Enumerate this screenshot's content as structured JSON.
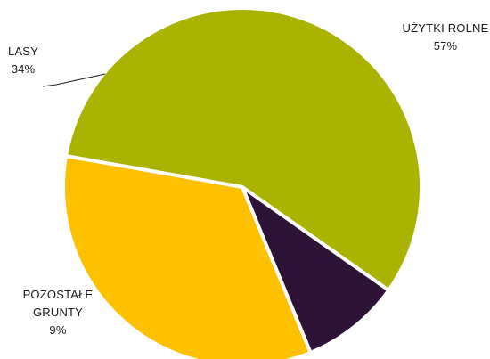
{
  "chart_data": {
    "type": "pie",
    "slices": [
      {
        "name": "UŻYTKI ROLNE",
        "label_lines": [
          "UŻYTKI ROLNE"
        ],
        "value": 57,
        "value_label": "57%",
        "color": "#a9b300"
      },
      {
        "name": "POZOSTAŁE GRUNTY",
        "label_lines": [
          "POZOSTAŁE",
          "GRUNTY"
        ],
        "value": 9,
        "value_label": "9%",
        "color": "#2e1238"
      },
      {
        "name": "LASY",
        "label_lines": [
          "LASY"
        ],
        "value": 34,
        "value_label": "34%",
        "color": "#ffc000"
      }
    ],
    "title": "",
    "legend": "none"
  }
}
